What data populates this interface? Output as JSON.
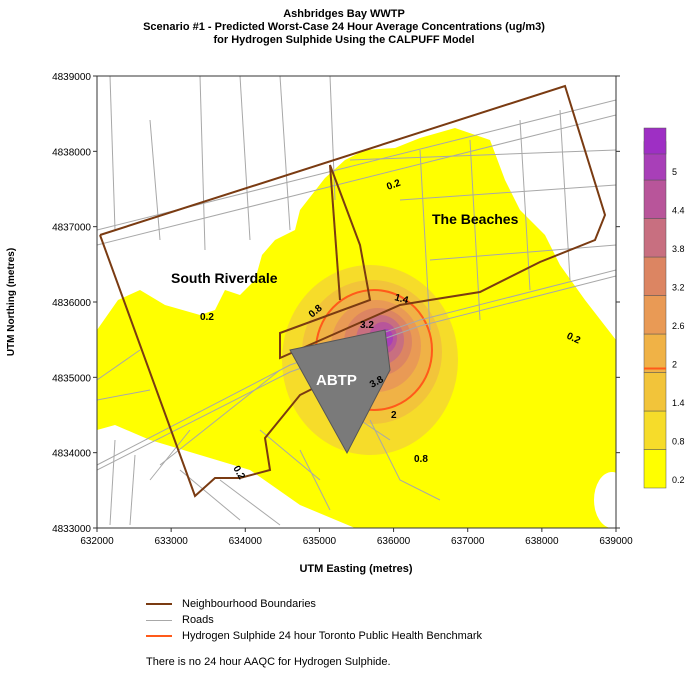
{
  "header": {
    "title_line1": "Ashbridges Bay WWTP",
    "title_line2": "Scenario #1 - Predicted Worst-Case 24 Hour Average Concentrations (ug/m3)",
    "title_line3": "for Hydrogen Sulphide Using the CALPUFF Model"
  },
  "axes": {
    "xlabel": "UTM Easting (metres)",
    "ylabel": "UTM Northing (metres)",
    "x_ticks": [
      "632000",
      "633000",
      "634000",
      "635000",
      "636000",
      "637000",
      "638000",
      "639000"
    ],
    "y_ticks": [
      "4839000",
      "4838000",
      "4837000",
      "4836000",
      "4835000",
      "4834000",
      "4833000"
    ],
    "xlim": [
      632000,
      639000
    ],
    "ylim": [
      4833000,
      4839000
    ]
  },
  "map_labels": {
    "beaches": "The Beaches",
    "riverdale": "South Riverdale",
    "plant": "ABTP"
  },
  "contour_labels": [
    "0.2",
    "0.2",
    "0.2",
    "0.2",
    "0.8",
    "1.4",
    "3.2",
    "3.8",
    "2",
    "0.8"
  ],
  "colorbar": {
    "levels": [
      "0.2",
      "0.8",
      "1.4",
      "2",
      "2.6",
      "3.2",
      "3.8",
      "4.4",
      "5"
    ],
    "colors": [
      "#ffff00",
      "#f6dc2a",
      "#f2c43a",
      "#f0b246",
      "#e99a55",
      "#dc8562",
      "#c86f80",
      "#b8559a",
      "#a83fb8",
      "#9e2fc4"
    ]
  },
  "legend": {
    "items": [
      {
        "label": "Neighbourhood Boundaries",
        "color": "#7a3b12"
      },
      {
        "label": "Roads",
        "color": "#a8a8a8"
      },
      {
        "label": "Hydrogen Sulphide 24 hour Toronto Public Health Benchmark",
        "color": "#ff5a1a"
      }
    ]
  },
  "note": "There is no  24 hour AAQC for Hydrogen Sulphide."
}
